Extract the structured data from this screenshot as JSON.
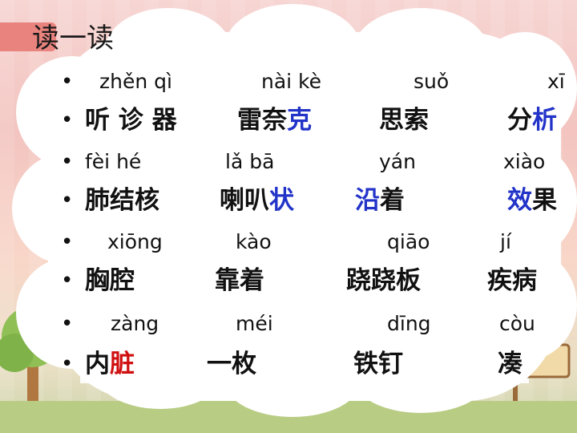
{
  "title": "读一读",
  "colors": {
    "highlight_blue": "#2233c8",
    "highlight_red": "#d01010",
    "text": "#111111"
  },
  "rows": [
    {
      "type": "pinyin",
      "items": [
        "zhěn qì",
        "nài kè",
        "suǒ",
        "xī"
      ]
    },
    {
      "type": "hanzi",
      "items": [
        {
          "parts": [
            {
              "t": "听 诊 器",
              "c": ""
            }
          ]
        },
        {
          "parts": [
            {
              "t": "雷奈",
              "c": ""
            },
            {
              "t": "克",
              "c": "blue"
            }
          ]
        },
        {
          "parts": [
            {
              "t": "思索",
              "c": ""
            }
          ]
        },
        {
          "parts": [
            {
              "t": "分",
              "c": ""
            },
            {
              "t": "析",
              "c": "blue"
            }
          ]
        }
      ]
    },
    {
      "type": "pinyin",
      "items": [
        "fèi    hé",
        "lǎ bā",
        "yán",
        "xiào"
      ]
    },
    {
      "type": "hanzi",
      "items": [
        {
          "parts": [
            {
              "t": "肺结核",
              "c": ""
            }
          ]
        },
        {
          "parts": [
            {
              "t": "喇叭",
              "c": ""
            },
            {
              "t": "状",
              "c": "blue"
            }
          ]
        },
        {
          "parts": [
            {
              "t": "沿",
              "c": "blue"
            },
            {
              "t": "着",
              "c": ""
            }
          ]
        },
        {
          "parts": [
            {
              "t": "效",
              "c": "blue"
            },
            {
              "t": "果",
              "c": ""
            }
          ]
        }
      ]
    },
    {
      "type": "pinyin",
      "items": [
        "xiōng",
        "kào",
        "qiāo",
        "jí"
      ]
    },
    {
      "type": "hanzi",
      "items": [
        {
          "parts": [
            {
              "t": "胸腔",
              "c": ""
            }
          ]
        },
        {
          "parts": [
            {
              "t": "靠着",
              "c": ""
            }
          ]
        },
        {
          "parts": [
            {
              "t": "跷跷板",
              "c": ""
            }
          ]
        },
        {
          "parts": [
            {
              "t": "疾病",
              "c": ""
            }
          ]
        }
      ]
    },
    {
      "type": "pinyin",
      "items": [
        "zàng",
        "méi",
        "dīng",
        "còu"
      ]
    },
    {
      "type": "hanzi",
      "items": [
        {
          "parts": [
            {
              "t": "内",
              "c": ""
            },
            {
              "t": "脏",
              "c": "red"
            }
          ]
        },
        {
          "parts": [
            {
              "t": "一枚",
              "c": ""
            }
          ]
        },
        {
          "parts": [
            {
              "t": "铁钉",
              "c": ""
            }
          ]
        },
        {
          "parts": [
            {
              "t": "凑",
              "c": ""
            }
          ]
        }
      ]
    }
  ]
}
